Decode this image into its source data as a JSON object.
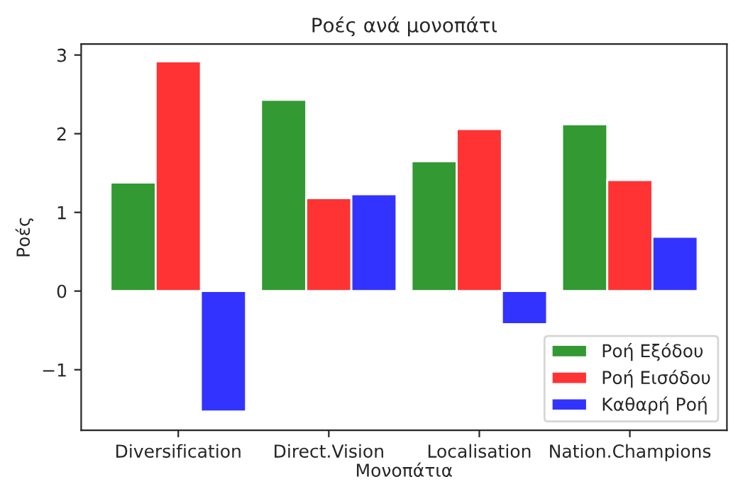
{
  "chart_data": {
    "type": "bar",
    "title": "Ροές ανά μονοπάτι",
    "xlabel": "Μονοπάτια",
    "ylabel": "Ροές",
    "categories": [
      "Diversification",
      "Direct.Vision",
      "Localisation",
      "Nation.Champions"
    ],
    "series": [
      {
        "name": "Ροή Εξόδου",
        "color": "#339933",
        "values": [
          1.38,
          2.43,
          1.65,
          2.12
        ]
      },
      {
        "name": "Ροή Εισόδου",
        "color": "#ff3333",
        "values": [
          2.92,
          1.18,
          2.06,
          1.41
        ]
      },
      {
        "name": "Καθαρή Ροή",
        "color": "#3333ff",
        "values": [
          -1.53,
          1.23,
          -0.42,
          0.69
        ]
      }
    ],
    "ylim": [
      -1.77,
      3.14
    ],
    "yticks": [
      {
        "value": -1,
        "label": "−1"
      },
      0,
      1,
      2,
      3
    ],
    "grid": false,
    "legend": "bottom right"
  }
}
